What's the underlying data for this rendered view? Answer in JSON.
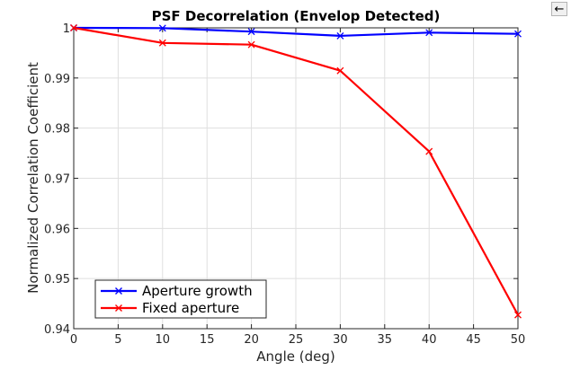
{
  "toolbar": {
    "back_icon": "left-arrow-icon",
    "back_glyph": "←"
  },
  "chart_data": {
    "type": "line",
    "title": "PSF Decorrelation (Envelop Detected)",
    "xlabel": "Angle (deg)",
    "ylabel": "Normalized Correlation Coefficient",
    "xlim": [
      0,
      50
    ],
    "ylim": [
      0.94,
      1
    ],
    "xticks": [
      "0",
      "5",
      "10",
      "15",
      "20",
      "25",
      "30",
      "35",
      "40",
      "45",
      "50"
    ],
    "yticks": [
      "0.94",
      "0.95",
      "0.96",
      "0.97",
      "0.98",
      "0.99",
      "1"
    ],
    "grid": true,
    "legend_location": "bottom-left",
    "x": [
      0,
      10,
      20,
      30,
      40,
      50
    ],
    "series": [
      {
        "name": "Aperture growth",
        "color": "#0000ff",
        "marker": "x",
        "values": [
          1.0,
          0.99995,
          0.99925,
          0.9984,
          0.99905,
          0.9988
        ]
      },
      {
        "name": "Fixed aperture",
        "color": "#ff0000",
        "marker": "x",
        "values": [
          1.0,
          0.997,
          0.99665,
          0.99145,
          0.97535,
          0.94275
        ]
      }
    ]
  }
}
